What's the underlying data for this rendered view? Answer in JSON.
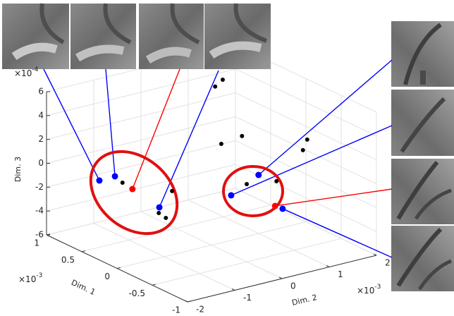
{
  "chart_data": {
    "type": "scatter3d",
    "xlabel": "Dim. 1",
    "ylabel": "Dim. 2",
    "zlabel": "Dim. 3",
    "x_multiplier": {
      "base": "×10",
      "power": "-3"
    },
    "y_multiplier": {
      "base": "×10",
      "power": "-3"
    },
    "z_multiplier": {
      "base": "×10",
      "power": "-4"
    },
    "xlim": [
      -1,
      1
    ],
    "xticks": [
      -1,
      -0.5,
      0,
      0.5,
      1
    ],
    "ylim": [
      -2,
      2
    ],
    "yticks": [
      -2,
      -1,
      0,
      1,
      2
    ],
    "zlim": [
      -6,
      6
    ],
    "zticks": [
      -6,
      -4,
      -2,
      0,
      2,
      4,
      6
    ],
    "grid": true,
    "series": [
      {
        "color": "#000000",
        "x": [
          0.8,
          0.8,
          0.5,
          0.5,
          -0.5,
          -0.5,
          1,
          1,
          1,
          0.8,
          -0.5,
          -0.5
        ],
        "y": [
          -0.69,
          0.36,
          -0.37,
          -0.22,
          0.0,
          0.63,
          1.57,
          1.73,
          1.7,
          1.84,
          1.28,
          1.19
        ],
        "z": [
          -2.34,
          -4.07,
          -4.35,
          -4.91,
          0.52,
          0.15,
          2.95,
          3.37,
          -1.98,
          -0.9,
          3.0,
          2.2
        ]
      },
      {
        "color": "#0000ff",
        "x": [
          0.8,
          0.8,
          0.8,
          -0.5,
          -0.5,
          -0.5
        ],
        "y": [
          -1.18,
          -0.85,
          0.09,
          0.25,
          -0.33,
          0.76
        ],
        "z": [
          -1.68,
          -1.65,
          -5.17,
          1.04,
          -0.1,
          -2.29
        ]
      },
      {
        "color": "#ff0000",
        "x": [
          0.8,
          -0.5
        ],
        "y": [
          -0.48,
          0.6
        ],
        "z": [
          -3.08,
          -1.9
        ]
      }
    ]
  }
}
